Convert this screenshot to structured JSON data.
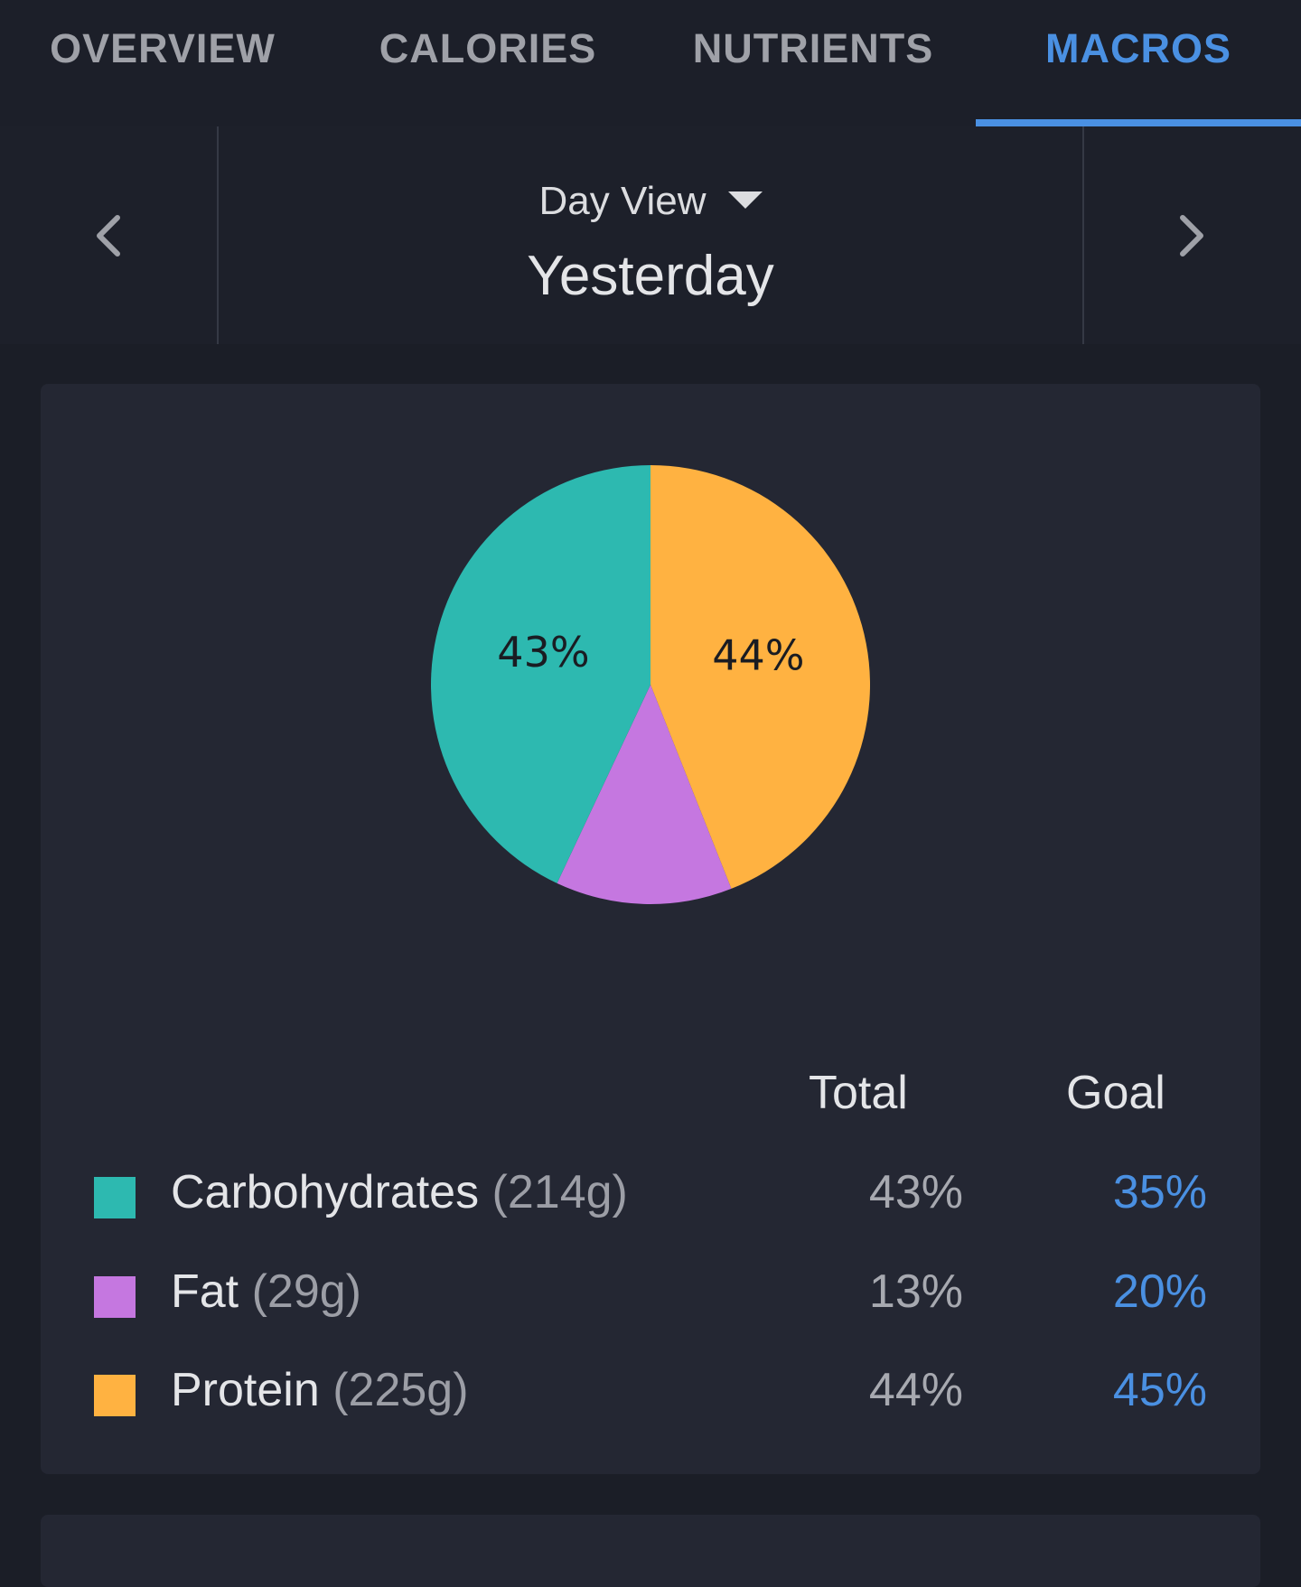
{
  "tabs": [
    {
      "label": "OVERVIEW"
    },
    {
      "label": "CALORIES"
    },
    {
      "label": "NUTRIENTS"
    },
    {
      "label": "MACROS"
    }
  ],
  "active_tab": "MACROS",
  "date_nav": {
    "view_mode": "Day View",
    "date": "Yesterday"
  },
  "chart_data": {
    "type": "pie",
    "slices": [
      {
        "label": "Protein",
        "value": 44,
        "color": "#ffb241",
        "data_label": "44%"
      },
      {
        "label": "Fat",
        "value": 13,
        "color": "#c577e0",
        "data_label": ""
      },
      {
        "label": "Carbohydrates",
        "value": 43,
        "color": "#2db9b0",
        "data_label": "43%"
      }
    ]
  },
  "macros_table": {
    "headers": {
      "total": "Total",
      "goal": "Goal"
    },
    "rows": [
      {
        "name": "Carbohydrates",
        "grams": "(214g)",
        "total": "43%",
        "goal": "35%",
        "color": "#2db9b0"
      },
      {
        "name": "Fat",
        "grams": "(29g)",
        "total": "13%",
        "goal": "20%",
        "color": "#c577e0"
      },
      {
        "name": "Protein",
        "grams": "(225g)",
        "total": "44%",
        "goal": "45%",
        "color": "#ffb241"
      }
    ]
  },
  "colors": {
    "accent": "#4a90e2",
    "background": "#1b1e27",
    "card": "#242733"
  }
}
